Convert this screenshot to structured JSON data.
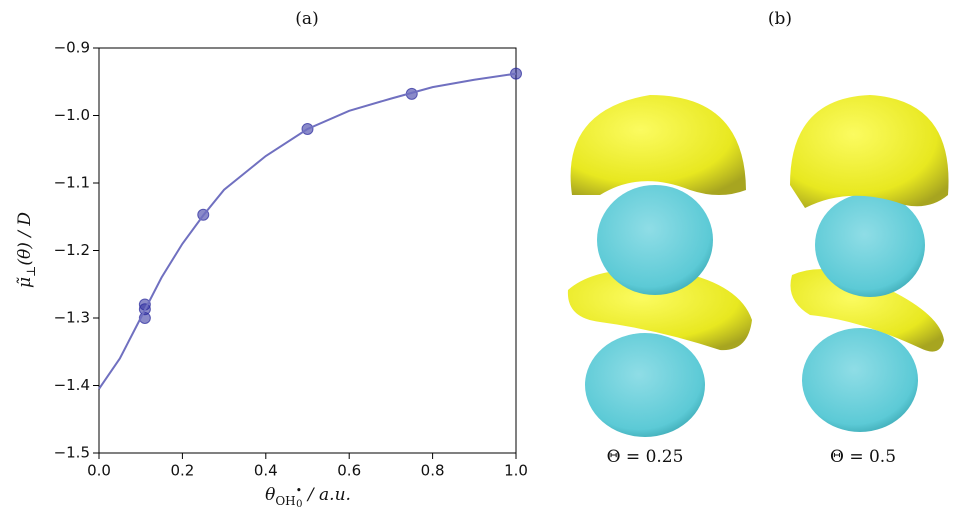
{
  "chart_data": {
    "type": "scatter",
    "title": "(a)",
    "ylabel": {
      "symbol": "μ̃",
      "subscript": "⊥",
      "rest": "(θ) / D"
    },
    "xlabel": {
      "symbol": "θ",
      "subscript": "OH",
      "superscript": "•",
      "subsubscript": "0",
      "rest": " / a.u."
    },
    "xlim": [
      0,
      1
    ],
    "ylim": [
      -1.5,
      -0.9
    ],
    "xticks": [
      {
        "value": 0,
        "label": "0.0"
      },
      0.2,
      0.4,
      0.6,
      0.8,
      {
        "value": 1,
        "label": "1.0"
      }
    ],
    "yticks": [
      {
        "value": -1.5,
        "label": "−1.5"
      },
      {
        "value": -1.4,
        "label": "−1.4"
      },
      {
        "value": -1.3,
        "label": "−1.3"
      },
      {
        "value": -1.2,
        "label": "−1.2"
      },
      {
        "value": -1.1,
        "label": "−1.1"
      },
      {
        "value": -1.0,
        "label": "−1.0"
      },
      {
        "value": -0.9,
        "label": "−0.9"
      }
    ],
    "series": [
      {
        "mode": "markers",
        "color": "#2a2a9c",
        "x": [
          0.11,
          0.11,
          0.11,
          0.25,
          0.5,
          0.75,
          1.0
        ],
        "values": [
          -1.28,
          -1.287,
          -1.3,
          -1.147,
          -1.02,
          -0.968,
          -0.938
        ]
      },
      {
        "mode": "line",
        "color": "#7070c0",
        "x": [
          0,
          0.05,
          0.1,
          0.15,
          0.2,
          0.25,
          0.3,
          0.4,
          0.5,
          0.6,
          0.7,
          0.8,
          0.9,
          1.0
        ],
        "values": [
          -1.405,
          -1.36,
          -1.3,
          -1.24,
          -1.19,
          -1.148,
          -1.11,
          -1.06,
          -1.02,
          -0.993,
          -0.975,
          -0.958,
          -0.947,
          -0.938
        ]
      }
    ]
  },
  "panel_b": {
    "title": "(b)",
    "labels": [
      "Θ = 0.25",
      "Θ = 0.5"
    ]
  }
}
